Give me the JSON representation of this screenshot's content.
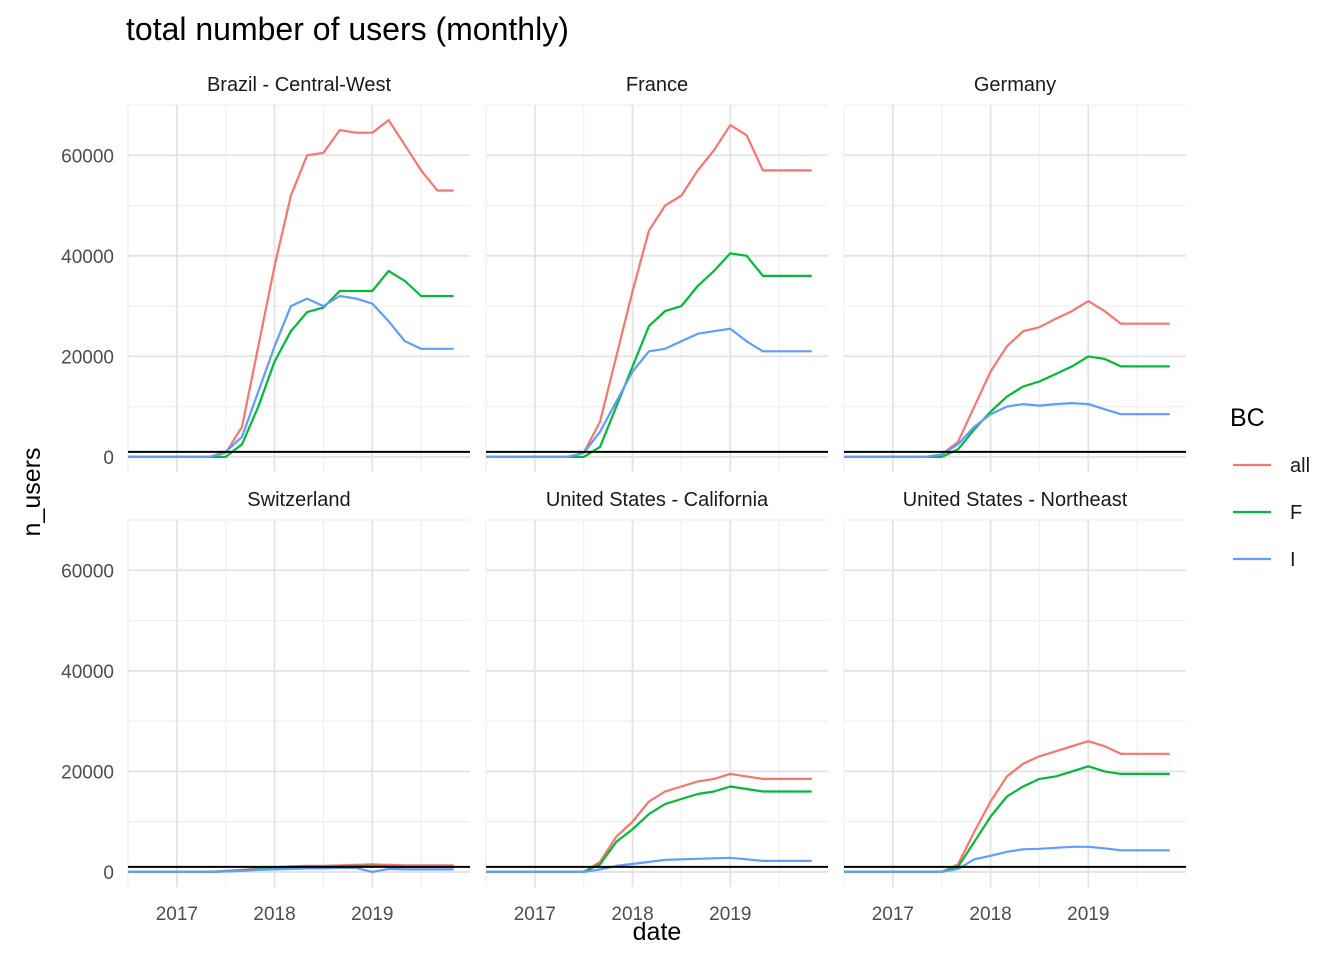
{
  "chart_data": {
    "type": "line",
    "title": "total number of users (monthly)",
    "xlabel": "date",
    "ylabel": "n_users",
    "x_ticks": [
      "2017",
      "2018",
      "2019"
    ],
    "y_ticks": [
      "0",
      "20000",
      "40000",
      "60000"
    ],
    "xlim": [
      "2016-07",
      "2020-01"
    ],
    "ylim": [
      -3000,
      70000
    ],
    "grid": true,
    "reference_line_y": 1000,
    "legend": {
      "title": "BC",
      "position": "right",
      "entries": [
        {
          "name": "all",
          "color": "#F8766D"
        },
        {
          "name": "F",
          "color": "#00BA38"
        },
        {
          "name": "I",
          "color": "#619CFF"
        }
      ]
    },
    "x": [
      "2016-07",
      "2016-09",
      "2016-11",
      "2017-01",
      "2017-03",
      "2017-05",
      "2017-07",
      "2017-09",
      "2017-11",
      "2018-01",
      "2018-03",
      "2018-05",
      "2018-07",
      "2018-09",
      "2018-11",
      "2019-01",
      "2019-03",
      "2019-05",
      "2019-07",
      "2019-09",
      "2019-11"
    ],
    "panels": [
      {
        "name": "Brazil - Central-West",
        "series": [
          {
            "name": "all",
            "values": [
              0,
              0,
              0,
              0,
              0,
              0,
              800,
              6000,
              22000,
              38000,
              52000,
              60000,
              60500,
              65000,
              64500,
              64500,
              67000,
              62000,
              57000,
              53000,
              53000
            ]
          },
          {
            "name": "F",
            "values": [
              0,
              0,
              0,
              0,
              0,
              0,
              0,
              2500,
              10000,
              19000,
              25000,
              28800,
              29700,
              33000,
              33000,
              33000,
              37000,
              35000,
              32000,
              32000,
              32000
            ]
          },
          {
            "name": "I",
            "values": [
              0,
              0,
              0,
              0,
              0,
              0,
              1000,
              4000,
              13000,
              22000,
              30000,
              31500,
              30000,
              32000,
              31500,
              30500,
              27000,
              23000,
              21500,
              21500,
              21500
            ]
          }
        ]
      },
      {
        "name": "France",
        "series": [
          {
            "name": "all",
            "values": [
              0,
              0,
              0,
              0,
              0,
              0,
              800,
              7000,
              20000,
              33000,
              45000,
              50000,
              52000,
              57000,
              61000,
              66000,
              64000,
              57000,
              57000,
              57000,
              57000
            ]
          },
          {
            "name": "F",
            "values": [
              0,
              0,
              0,
              0,
              0,
              0,
              0,
              2000,
              10000,
              18000,
              26000,
              29000,
              30000,
              34000,
              37000,
              40500,
              40000,
              36000,
              36000,
              36000,
              36000
            ]
          },
          {
            "name": "I",
            "values": [
              0,
              0,
              0,
              0,
              0,
              0,
              800,
              5000,
              11000,
              17000,
              21000,
              21500,
              23000,
              24500,
              25000,
              25500,
              23000,
              21000,
              21000,
              21000,
              21000
            ]
          }
        ]
      },
      {
        "name": "Germany",
        "series": [
          {
            "name": "all",
            "values": [
              0,
              0,
              0,
              0,
              0,
              0,
              500,
              3000,
              10000,
              17000,
              22000,
              25000,
              25800,
              27500,
              29000,
              31000,
              29000,
              26500,
              26500,
              26500,
              26500
            ]
          },
          {
            "name": "F",
            "values": [
              0,
              0,
              0,
              0,
              0,
              0,
              0,
              1500,
              5500,
              9000,
              12000,
              14000,
              15000,
              16500,
              18000,
              20000,
              19500,
              18000,
              18000,
              18000,
              18000
            ]
          },
          {
            "name": "I",
            "values": [
              0,
              0,
              0,
              0,
              0,
              0,
              500,
              2500,
              6000,
              8500,
              10000,
              10500,
              10200,
              10500,
              10700,
              10500,
              9500,
              8500,
              8500,
              8500,
              8500
            ]
          }
        ]
      },
      {
        "name": "Switzerland",
        "series": [
          {
            "name": "all",
            "values": [
              0,
              0,
              0,
              0,
              0,
              0,
              200,
              400,
              700,
              900,
              1100,
              1200,
              1200,
              1300,
              1400,
              1500,
              1400,
              1300,
              1300,
              1300,
              1300
            ]
          },
          {
            "name": "F",
            "values": [
              0,
              0,
              0,
              0,
              0,
              0,
              100,
              300,
              500,
              700,
              900,
              1000,
              1000,
              1100,
              1200,
              1200,
              1100,
              1000,
              1000,
              1000,
              1000
            ]
          },
          {
            "name": "I",
            "values": [
              0,
              0,
              0,
              0,
              0,
              0,
              100,
              200,
              400,
              500,
              600,
              700,
              700,
              800,
              800,
              0,
              600,
              500,
              500,
              500,
              500
            ]
          }
        ]
      },
      {
        "name": "United States - California",
        "series": [
          {
            "name": "all",
            "values": [
              0,
              0,
              0,
              0,
              0,
              0,
              0,
              2000,
              7000,
              10000,
              14000,
              16000,
              17000,
              18000,
              18500,
              19500,
              19000,
              18500,
              18500,
              18500,
              18500
            ]
          },
          {
            "name": "F",
            "values": [
              0,
              0,
              0,
              0,
              0,
              0,
              0,
              1500,
              6000,
              8500,
              11500,
              13500,
              14500,
              15500,
              16000,
              17000,
              16500,
              16000,
              16000,
              16000,
              16000
            ]
          },
          {
            "name": "I",
            "values": [
              0,
              0,
              0,
              0,
              0,
              0,
              0,
              500,
              1200,
              1600,
              2000,
              2400,
              2500,
              2600,
              2700,
              2800,
              2500,
              2200,
              2200,
              2200,
              2200
            ]
          }
        ]
      },
      {
        "name": "United States - Northeast",
        "series": [
          {
            "name": "all",
            "values": [
              0,
              0,
              0,
              0,
              0,
              0,
              0,
              1500,
              8000,
              14000,
              19000,
              21500,
              23000,
              24000,
              25000,
              26000,
              25000,
              23500,
              23500,
              23500,
              23500
            ]
          },
          {
            "name": "F",
            "values": [
              0,
              0,
              0,
              0,
              0,
              0,
              0,
              1000,
              6000,
              11000,
              15000,
              17000,
              18500,
              19000,
              20000,
              21000,
              20000,
              19500,
              19500,
              19500,
              19500
            ]
          },
          {
            "name": "I",
            "values": [
              0,
              0,
              0,
              0,
              0,
              0,
              0,
              600,
              2500,
              3200,
              4000,
              4500,
              4600,
              4800,
              5000,
              5000,
              4700,
              4300,
              4300,
              4300,
              4300
            ]
          }
        ]
      }
    ]
  }
}
